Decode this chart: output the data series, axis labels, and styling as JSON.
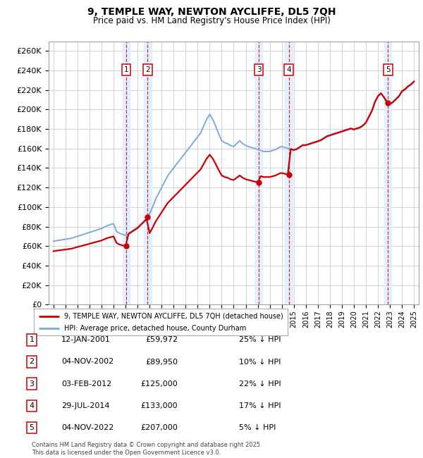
{
  "title": "9, TEMPLE WAY, NEWTON AYCLIFFE, DL5 7QH",
  "subtitle": "Price paid vs. HM Land Registry's House Price Index (HPI)",
  "ylim": [
    0,
    270000
  ],
  "yticks": [
    0,
    20000,
    40000,
    60000,
    80000,
    100000,
    120000,
    140000,
    160000,
    180000,
    200000,
    220000,
    240000,
    260000
  ],
  "legend_line1": "9, TEMPLE WAY, NEWTON AYCLIFFE, DL5 7QH (detached house)",
  "legend_line2": "HPI: Average price, detached house, County Durham",
  "footer": "Contains HM Land Registry data © Crown copyright and database right 2025.\nThis data is licensed under the Open Government Licence v3.0.",
  "sale_year_floats": [
    2001.04,
    2002.84,
    2012.09,
    2014.58,
    2022.84
  ],
  "sale_prices": [
    59972,
    89950,
    125000,
    133000,
    207000
  ],
  "sale_labels": [
    "1",
    "2",
    "3",
    "4",
    "5"
  ],
  "sale_label_display": [
    "12-JAN-2001",
    "04-NOV-2002",
    "03-FEB-2012",
    "29-JUL-2014",
    "04-NOV-2022"
  ],
  "sale_price_display": [
    "£59,972",
    "£89,950",
    "£125,000",
    "£133,000",
    "£207,000"
  ],
  "sale_pct_display": [
    "25% ↓ HPI",
    "10% ↓ HPI",
    "22% ↓ HPI",
    "17% ↓ HPI",
    "5% ↓ HPI"
  ],
  "hpi_color": "#7aabdb",
  "sale_color": "#cc0000",
  "vline_color": "#cc0000",
  "vshade_color": "#ddeeff",
  "grid_color": "#cccccc",
  "bg_color": "#ffffff",
  "hpi_years": [
    1995.0,
    1995.25,
    1995.5,
    1995.75,
    1996.0,
    1996.25,
    1996.5,
    1996.75,
    1997.0,
    1997.25,
    1997.5,
    1997.75,
    1998.0,
    1998.25,
    1998.5,
    1998.75,
    1999.0,
    1999.25,
    1999.5,
    1999.75,
    2000.0,
    2000.25,
    2000.5,
    2000.75,
    2001.0,
    2001.25,
    2001.5,
    2001.75,
    2002.0,
    2002.25,
    2002.5,
    2002.75,
    2003.0,
    2003.25,
    2003.5,
    2003.75,
    2004.0,
    2004.25,
    2004.5,
    2004.75,
    2005.0,
    2005.25,
    2005.5,
    2005.75,
    2006.0,
    2006.25,
    2006.5,
    2006.75,
    2007.0,
    2007.25,
    2007.5,
    2007.75,
    2008.0,
    2008.25,
    2008.5,
    2008.75,
    2009.0,
    2009.25,
    2009.5,
    2009.75,
    2010.0,
    2010.25,
    2010.5,
    2010.75,
    2011.0,
    2011.25,
    2011.5,
    2011.75,
    2012.0,
    2012.25,
    2012.5,
    2012.75,
    2013.0,
    2013.25,
    2013.5,
    2013.75,
    2014.0,
    2014.25,
    2014.5,
    2014.75,
    2015.0,
    2015.25,
    2015.5,
    2015.75,
    2016.0,
    2016.25,
    2016.5,
    2016.75,
    2017.0,
    2017.25,
    2017.5,
    2017.75,
    2018.0,
    2018.25,
    2018.5,
    2018.75,
    2019.0,
    2019.25,
    2019.5,
    2019.75,
    2020.0,
    2020.25,
    2020.5,
    2020.75,
    2021.0,
    2021.25,
    2021.5,
    2021.75,
    2022.0,
    2022.25,
    2022.5,
    2022.75,
    2023.0,
    2023.25,
    2023.5,
    2023.75,
    2024.0,
    2024.25,
    2024.5,
    2024.75,
    2025.0
  ],
  "hpi_values": [
    65000,
    65500,
    66000,
    66500,
    67000,
    67500,
    68000,
    69000,
    70000,
    71000,
    72000,
    73000,
    74000,
    75000,
    76000,
    77000,
    78000,
    79500,
    81000,
    82000,
    83000,
    75000,
    73000,
    72000,
    71000,
    72000,
    74000,
    76000,
    78000,
    81000,
    84000,
    87000,
    93000,
    100000,
    108000,
    114000,
    120000,
    126000,
    132000,
    136000,
    140000,
    144000,
    148000,
    152000,
    156000,
    160000,
    164000,
    168000,
    172000,
    176000,
    183000,
    190000,
    195000,
    190000,
    183000,
    175000,
    168000,
    166000,
    165000,
    163000,
    162000,
    165000,
    168000,
    165000,
    163000,
    162000,
    161000,
    160000,
    159000,
    158000,
    157000,
    157000,
    157000,
    158000,
    159000,
    161000,
    162000,
    161000,
    160000,
    159000,
    158000,
    159000,
    161000,
    163000,
    163000,
    164000,
    165000,
    166000,
    167000,
    168000,
    170000,
    172000,
    173000,
    174000,
    175000,
    176000,
    177000,
    178000,
    179000,
    180000,
    179000,
    180000,
    181000,
    183000,
    186000,
    192000,
    198000,
    207000,
    213000,
    216000,
    212000,
    207000,
    205000,
    207000,
    210000,
    213000,
    218000,
    220000,
    223000,
    225000,
    228000
  ]
}
